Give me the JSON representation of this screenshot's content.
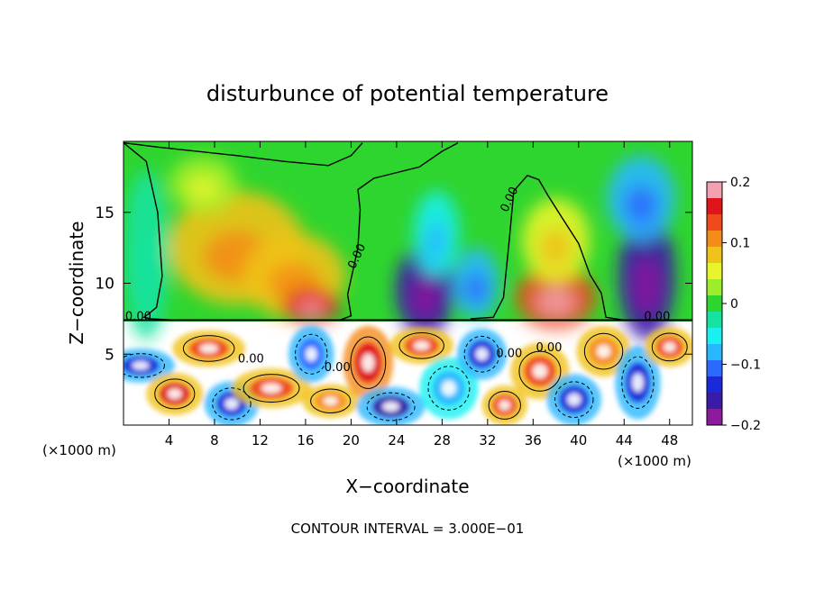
{
  "chart_data": {
    "type": "heatmap",
    "title": "disturbunce of potential temperature",
    "xlabel": "X−coordinate",
    "ylabel": "Z−coordinate",
    "x_unit_left": "(×1000 m)",
    "x_unit_right": "(×1000 m)",
    "footer": "CONTOUR INTERVAL = 3.000E−01",
    "xlim": [
      0,
      50
    ],
    "ylim": [
      0,
      20
    ],
    "x_ticks": [
      4,
      8,
      12,
      16,
      20,
      24,
      28,
      32,
      36,
      40,
      44,
      48
    ],
    "y_ticks": [
      5,
      10,
      15
    ],
    "color_range": [
      -0.2,
      0.2
    ],
    "colorbar_ticks": [
      {
        "value": 0.2,
        "label": "0.2"
      },
      {
        "value": 0.1,
        "label": "0.1"
      },
      {
        "value": 0,
        "label": "0"
      },
      {
        "value": -0.1,
        "label": "−0.1"
      },
      {
        "value": -0.2,
        "label": "−0.2"
      }
    ],
    "colorscale": [
      "#8b1a9c",
      "#3a1aa8",
      "#1a2ad8",
      "#2a6aff",
      "#29b8ff",
      "#19f0f0",
      "#16e3a0",
      "#2fd52f",
      "#9cee2a",
      "#e8f52a",
      "#f0c21a",
      "#f58c1a",
      "#ee4a1a",
      "#e0141a",
      "#f5a0b0"
    ],
    "contour_labels": [
      {
        "text": "0.00",
        "x": 1.3,
        "z": 7.4
      },
      {
        "text": "0.00",
        "x": 20.8,
        "z": 11.8
      },
      {
        "text": "0.00",
        "x": 34.2,
        "z": 15.8
      },
      {
        "text": "0.00",
        "x": 18.8,
        "z": 3.8
      },
      {
        "text": "0.00",
        "x": 33.9,
        "z": 4.8
      },
      {
        "text": "0.00",
        "x": 46.9,
        "z": 7.4
      },
      {
        "text": "0.00",
        "x": 37.4,
        "z": 5.2
      },
      {
        "text": "0.00",
        "x": 11.2,
        "z": 4.4
      }
    ],
    "zero_contour": [
      [
        0,
        19.9
      ],
      [
        2,
        18.6
      ],
      [
        3,
        15.0
      ],
      [
        3.4,
        10.5
      ],
      [
        2.9,
        8.3
      ],
      [
        2.3,
        7.9
      ],
      [
        1.8,
        7.6
      ],
      [
        2.4,
        7.5
      ],
      [
        4.5,
        7.4
      ],
      [
        9,
        7.4
      ],
      [
        14,
        7.4
      ],
      [
        19,
        7.4
      ],
      [
        20.0,
        7.7
      ],
      [
        19.7,
        9.2
      ],
      [
        20.6,
        12.5
      ],
      [
        20.8,
        15.2
      ],
      [
        20.6,
        16.6
      ],
      [
        22,
        17.4
      ],
      [
        26,
        18.2
      ],
      [
        28,
        19.3
      ],
      [
        29.4,
        19.9
      ]
    ],
    "zero_contour_2": [
      [
        0,
        19.9
      ],
      [
        3,
        19.6
      ],
      [
        10,
        19.0
      ],
      [
        14,
        18.6
      ],
      [
        18,
        18.3
      ],
      [
        20,
        19.0
      ],
      [
        21,
        19.9
      ]
    ],
    "zero_contour_3": [
      [
        30.5,
        7.5
      ],
      [
        32.5,
        7.6
      ],
      [
        33.4,
        9
      ],
      [
        33.9,
        13
      ],
      [
        34.3,
        16.5
      ],
      [
        35.5,
        17.6
      ],
      [
        36.5,
        17.3
      ],
      [
        37.3,
        16.2
      ],
      [
        38.4,
        14.8
      ],
      [
        40,
        12.8
      ],
      [
        41,
        10.6
      ],
      [
        42.0,
        9.3
      ],
      [
        42.4,
        7.6
      ],
      [
        44,
        7.4
      ]
    ],
    "warm_blobs": [
      {
        "x": 10,
        "z": 12.5,
        "rx": 6,
        "rz": 4,
        "value": 0.09
      },
      {
        "x": 15,
        "z": 10.5,
        "rx": 4.5,
        "rz": 3,
        "value": 0.08
      },
      {
        "x": 16.5,
        "z": 8.4,
        "rx": 2.5,
        "rz": 1.2,
        "value": 0.16
      },
      {
        "x": 38,
        "z": 9.0,
        "rx": 3.5,
        "rz": 2.2,
        "value": 0.14
      },
      {
        "x": 38,
        "z": 13,
        "rx": 3,
        "rz": 3,
        "value": 0.06
      },
      {
        "x": 7,
        "z": 17,
        "rx": 3,
        "rz": 2,
        "value": 0.04
      }
    ],
    "cold_blobs": [
      {
        "x": 26.5,
        "z": 9.5,
        "rx": 2.6,
        "rz": 3.2,
        "value": -0.16
      },
      {
        "x": 27.5,
        "z": 13.5,
        "rx": 2,
        "rz": 3,
        "value": -0.07
      },
      {
        "x": 46,
        "z": 10.5,
        "rx": 2.5,
        "rz": 4.5,
        "value": -0.17
      },
      {
        "x": 45.5,
        "z": 16,
        "rx": 3,
        "rz": 3,
        "value": -0.09
      },
      {
        "x": 31,
        "z": 10,
        "rx": 2,
        "rz": 2.5,
        "value": -0.08
      },
      {
        "x": 2,
        "z": 12,
        "rx": 2,
        "rz": 6,
        "value": -0.03
      }
    ],
    "lower_streaks": [
      {
        "x": 1.5,
        "z": 4.2,
        "w": 3,
        "h": 1.2,
        "value": -0.14
      },
      {
        "x": 4.5,
        "z": 2.2,
        "w": 2.5,
        "h": 1.5,
        "value": 0.16
      },
      {
        "x": 7.5,
        "z": 5.4,
        "w": 3.2,
        "h": 1.3,
        "value": 0.13
      },
      {
        "x": 9.5,
        "z": 1.5,
        "w": 2.4,
        "h": 1.6,
        "value": -0.15
      },
      {
        "x": 13,
        "z": 2.6,
        "w": 3.5,
        "h": 1.4,
        "value": 0.15
      },
      {
        "x": 16.5,
        "z": 5.0,
        "w": 2.0,
        "h": 2.0,
        "value": -0.12
      },
      {
        "x": 18.2,
        "z": 1.7,
        "w": 2.5,
        "h": 1.2,
        "value": 0.12
      },
      {
        "x": 21.5,
        "z": 4.4,
        "w": 2.2,
        "h": 2.6,
        "value": 0.17
      },
      {
        "x": 23.5,
        "z": 1.3,
        "w": 3,
        "h": 1.4,
        "value": -0.16
      },
      {
        "x": 26.2,
        "z": 5.6,
        "w": 2.8,
        "h": 1.3,
        "value": 0.14
      },
      {
        "x": 28.6,
        "z": 2.6,
        "w": 2.6,
        "h": 2.2,
        "value": -0.1
      },
      {
        "x": 31.5,
        "z": 5.0,
        "w": 2.2,
        "h": 1.8,
        "value": -0.14
      },
      {
        "x": 33.5,
        "z": 1.4,
        "w": 2.0,
        "h": 1.4,
        "value": 0.15
      },
      {
        "x": 36.6,
        "z": 3.8,
        "w": 2.6,
        "h": 2.0,
        "value": 0.13
      },
      {
        "x": 39.6,
        "z": 1.8,
        "w": 2.4,
        "h": 1.8,
        "value": -0.15
      },
      {
        "x": 42.2,
        "z": 5.2,
        "w": 2.4,
        "h": 1.8,
        "value": 0.12
      },
      {
        "x": 45.2,
        "z": 3.0,
        "w": 2.0,
        "h": 2.6,
        "value": -0.14
      },
      {
        "x": 48.0,
        "z": 5.5,
        "w": 2.2,
        "h": 1.4,
        "value": 0.13
      }
    ]
  }
}
